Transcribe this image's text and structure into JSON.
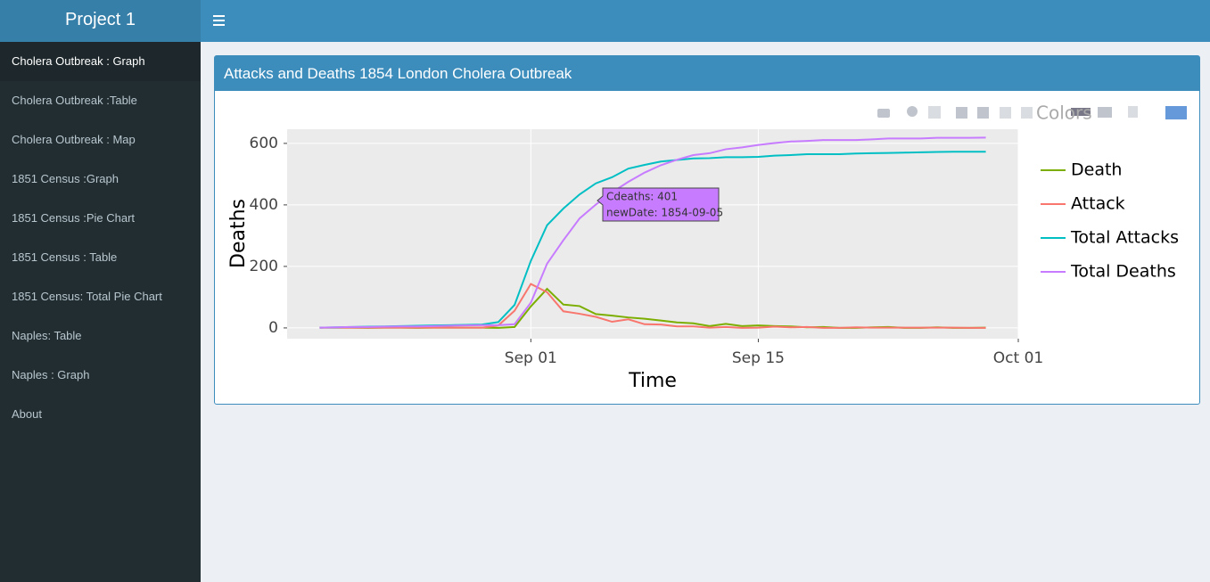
{
  "sidebar": {
    "title": "Project 1",
    "menu": [
      "Cholera Outbreak : Graph",
      "Cholera Outbreak :Table",
      "Cholera Outbreak : Map",
      "1851 Census :Graph",
      "1851 Census :Pie Chart",
      "1851 Census : Table",
      "1851 Census: Total Pie Chart",
      "Naples: Table",
      "Naples : Graph",
      "About"
    ]
  },
  "box": {
    "title": "Attacks and Deaths 1854 London Cholera Outbreak"
  },
  "chart_data": {
    "type": "line",
    "x_label": "Time",
    "y_label": "Deaths",
    "legend_title": "Colors",
    "legend": "right",
    "grid": true,
    "tooltip": [
      "Cdeaths: 401",
      "newDate: 1854-09-05"
    ],
    "x": [
      "08-19",
      "08-20",
      "08-21",
      "08-22",
      "08-23",
      "08-24",
      "08-25",
      "08-26",
      "08-27",
      "08-28",
      "08-29",
      "08-30",
      "08-31",
      "09-01",
      "09-02",
      "09-03",
      "09-04",
      "09-05",
      "09-06",
      "09-07",
      "09-08",
      "09-09",
      "09-10",
      "09-11",
      "09-12",
      "09-13",
      "09-14",
      "09-15",
      "09-16",
      "09-17",
      "09-18",
      "09-19",
      "09-20",
      "09-21",
      "09-22",
      "09-23",
      "09-24",
      "09-25",
      "09-26",
      "09-27",
      "09-28",
      "09-29"
    ],
    "xlim": [
      "08-17",
      "10-01"
    ],
    "xticks": [
      {
        "value": "09-01",
        "label": "Sep 01"
      },
      {
        "value": "09-15",
        "label": "Sep 15"
      },
      {
        "value": "10-01",
        "label": "Oct 01"
      }
    ],
    "ylim": [
      -35,
      646
    ],
    "yticks": [
      0,
      200,
      400,
      600
    ],
    "series": [
      {
        "name": "Death",
        "color": "#7cae00",
        "values": [
          1,
          1,
          1,
          0,
          1,
          1,
          0,
          1,
          1,
          1,
          1,
          0,
          3,
          70,
          127,
          76,
          71,
          45,
          40,
          34,
          30,
          24,
          18,
          15,
          6,
          13,
          6,
          8,
          6,
          5,
          2,
          3,
          0,
          0,
          2,
          3,
          0,
          0,
          2,
          0,
          0,
          1
        ]
      },
      {
        "name": "Attack",
        "color": "#f8766d",
        "values": [
          1,
          1,
          1,
          1,
          1,
          1,
          1,
          1,
          1,
          1,
          1,
          8,
          56,
          143,
          116,
          54,
          46,
          36,
          20,
          28,
          12,
          11,
          5,
          5,
          1,
          3,
          0,
          1,
          4,
          2,
          3,
          0,
          0,
          2,
          1,
          1,
          1,
          1,
          1,
          1,
          0,
          0
        ]
      },
      {
        "name": "Total Attacks",
        "color": "#00bfc4",
        "values": [
          1,
          2,
          3,
          4,
          5,
          6,
          7,
          8,
          9,
          10,
          11,
          19,
          75,
          218,
          334,
          388,
          434,
          470,
          490,
          518,
          530,
          541,
          546,
          551,
          552,
          555,
          555,
          556,
          560,
          562,
          565,
          565,
          565,
          567,
          568,
          569,
          570,
          571,
          572,
          573,
          573,
          573
        ]
      },
      {
        "name": "Total Deaths",
        "color": "#c77cff",
        "values": [
          1,
          2,
          3,
          3,
          4,
          5,
          5,
          6,
          7,
          8,
          9,
          9,
          12,
          82,
          209,
          285,
          356,
          401,
          441,
          475,
          505,
          529,
          547,
          562,
          568,
          581,
          587,
          595,
          601,
          606,
          608,
          611,
          611,
          611,
          613,
          616,
          616,
          616,
          618,
          618,
          618,
          619
        ]
      }
    ]
  }
}
